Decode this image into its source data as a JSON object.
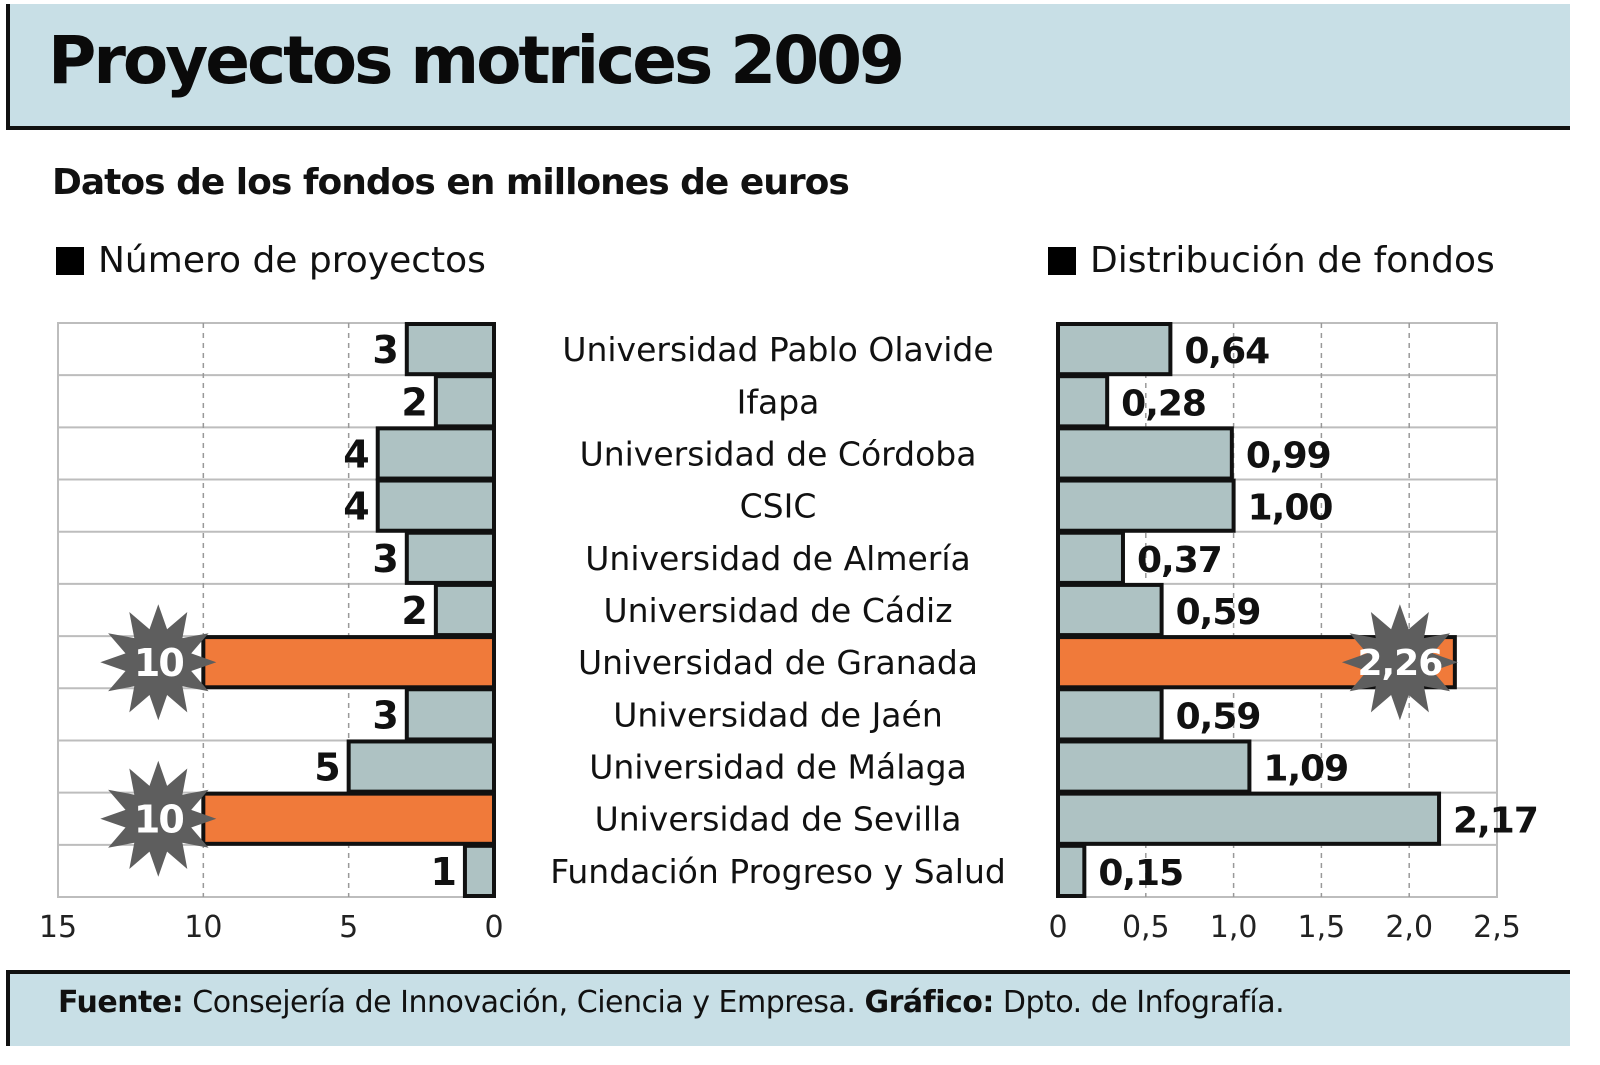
{
  "header": {
    "title": "Proyectos motrices 2009",
    "subtitle": "Datos de los fondos en millones de euros"
  },
  "legend": {
    "left": "Número de proyectos",
    "right": "Distribución de fondos"
  },
  "footer": {
    "source_label": "Fuente:",
    "source_text": " Consejería de Innovación, Ciencia y Empresa. ",
    "graphic_label": "Gráfico:",
    "graphic_text": " Dpto. de Infografía."
  },
  "colors": {
    "bar_default": "#aec2c3",
    "bar_highlight": "#f07a3a",
    "bar_border": "#111111",
    "burst": "#5e5e5e",
    "band": "#c8dfe6",
    "grid": "#bdbdbd"
  },
  "chart_data": [
    {
      "type": "bar",
      "orientation": "horizontal-reversed",
      "title": "Número de proyectos",
      "categories": [
        "Universidad Pablo Olavide",
        "Ifapa",
        "Universidad de Córdoba",
        "CSIC",
        "Universidad de Almería",
        "Universidad de Cádiz",
        "Universidad de Granada",
        "Universidad de Jaén",
        "Universidad de Málaga",
        "Universidad de Sevilla",
        "Fundación Progreso y Salud"
      ],
      "values": [
        3,
        2,
        4,
        4,
        3,
        2,
        10,
        3,
        5,
        10,
        1
      ],
      "labels": [
        "3",
        "2",
        "4",
        "4",
        "3",
        "2",
        "10",
        "3",
        "5",
        "10",
        "1"
      ],
      "highlight": [
        false,
        false,
        false,
        false,
        false,
        false,
        true,
        false,
        false,
        true,
        false
      ],
      "xlim": [
        0,
        15
      ],
      "xticks": [
        15,
        10,
        5,
        0
      ],
      "xtick_labels": [
        "15",
        "10",
        "5",
        "0"
      ],
      "grid": true
    },
    {
      "type": "bar",
      "orientation": "horizontal",
      "title": "Distribución de fondos",
      "categories": [
        "Universidad Pablo Olavide",
        "Ifapa",
        "Universidad de Córdoba",
        "CSIC",
        "Universidad de Almería",
        "Universidad de Cádiz",
        "Universidad de Granada",
        "Universidad de Jaén",
        "Universidad de Málaga",
        "Universidad de Sevilla",
        "Fundación Progreso y Salud"
      ],
      "values": [
        0.64,
        0.28,
        0.99,
        1.0,
        0.37,
        0.59,
        2.26,
        0.59,
        1.09,
        2.17,
        0.15
      ],
      "labels": [
        "0,64",
        "0,28",
        "0,99",
        "1,00",
        "0,37",
        "0,59",
        "2,26",
        "0,59",
        "1,09",
        "2,17",
        "0,15"
      ],
      "highlight": [
        false,
        false,
        false,
        false,
        false,
        false,
        true,
        false,
        false,
        false,
        false
      ],
      "xlim": [
        0,
        2.5
      ],
      "xticks": [
        0,
        0.5,
        1.0,
        1.5,
        2.0,
        2.5
      ],
      "xtick_labels": [
        "0",
        "0,5",
        "1,0",
        "1,5",
        "2,0",
        "2,5"
      ],
      "unit": "millones de euros",
      "grid": true
    }
  ]
}
